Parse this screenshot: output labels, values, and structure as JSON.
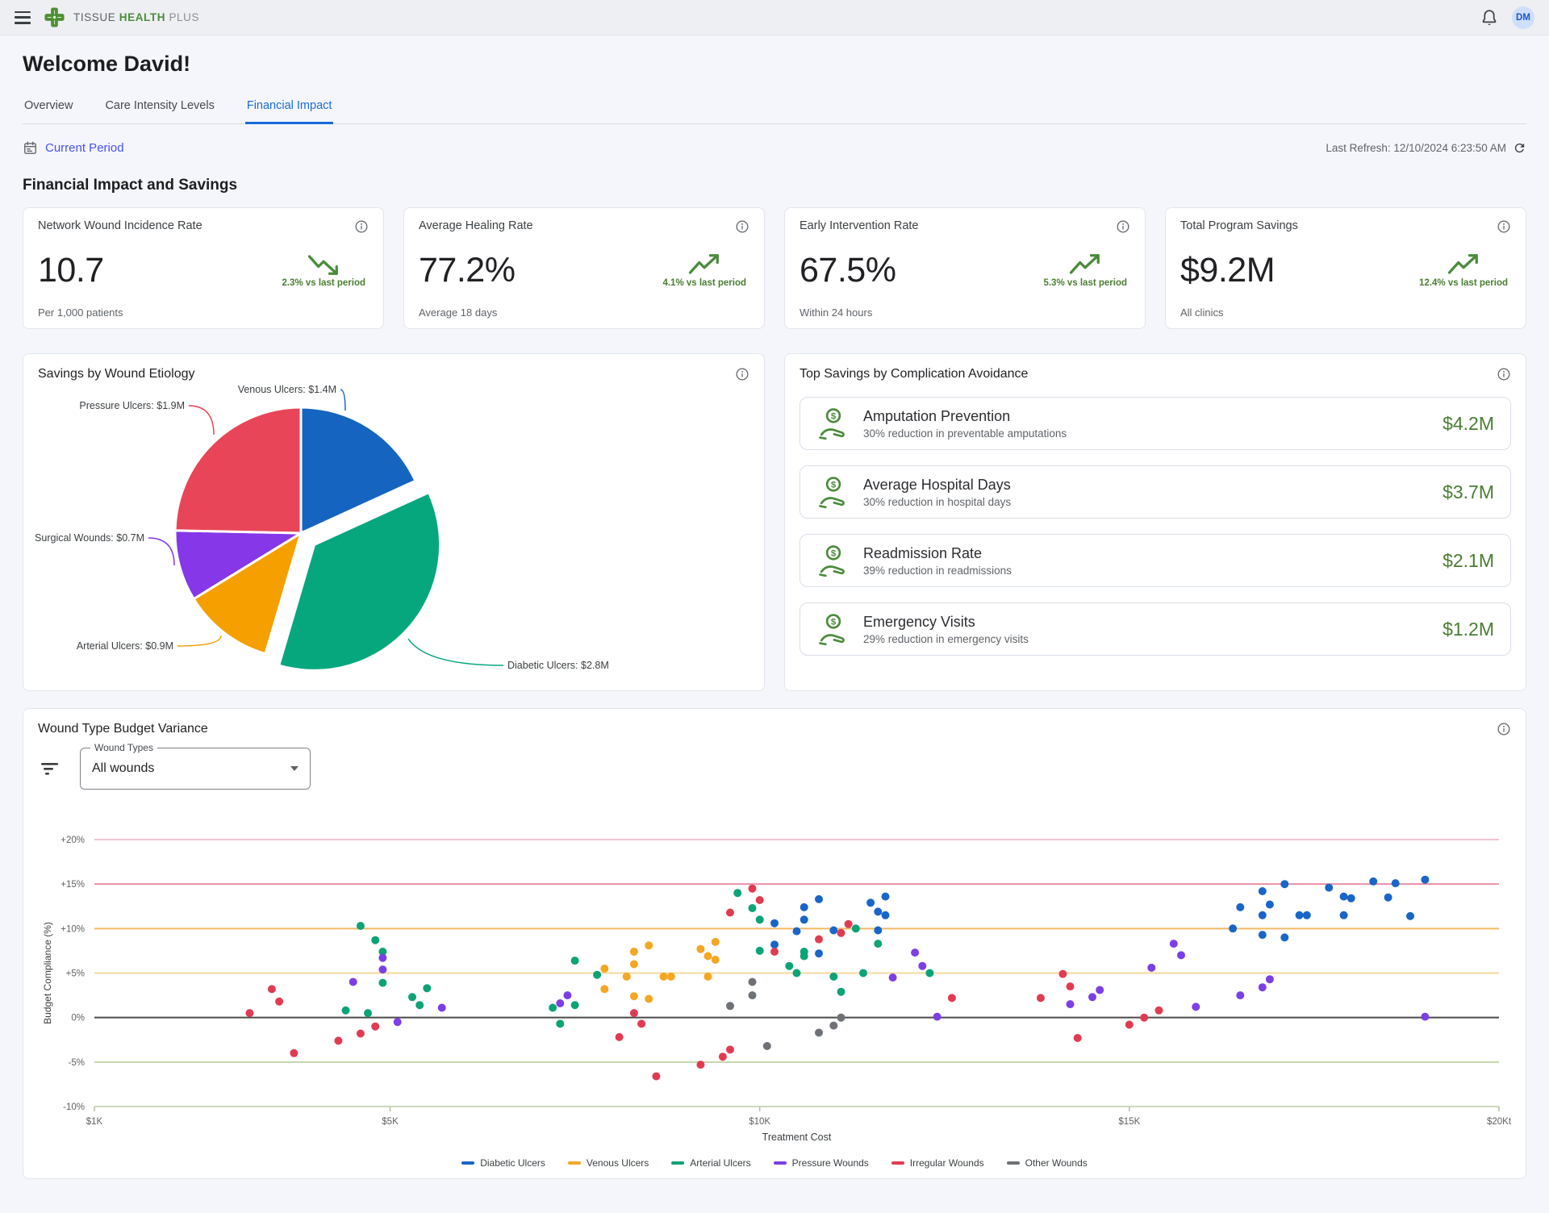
{
  "topbar": {
    "brand": {
      "word1": "TISSUE",
      "word2": "HEALTH",
      "word3": "PLUS"
    },
    "avatar": "DM"
  },
  "page": {
    "welcome": "Welcome David!",
    "tabs": [
      {
        "label": "Overview",
        "active": false
      },
      {
        "label": "Care Intensity Levels",
        "active": false
      },
      {
        "label": "Financial Impact",
        "active": true
      }
    ],
    "period_link": "Current Period",
    "last_refresh": "Last Refresh: 12/10/2024 6:23:50 AM",
    "section_title": "Financial Impact and Savings"
  },
  "kpis": [
    {
      "title": "Network Wound Incidence Rate",
      "value": "10.7",
      "subtitle": "Per 1,000 patients",
      "trend": "down",
      "trend_label": "2.3% vs last period"
    },
    {
      "title": "Average Healing Rate",
      "value": "77.2%",
      "subtitle": "Average 18 days",
      "trend": "up",
      "trend_label": "4.1% vs last period"
    },
    {
      "title": "Early Intervention Rate",
      "value": "67.5%",
      "subtitle": "Within 24 hours",
      "trend": "up",
      "trend_label": "5.3% vs last period"
    },
    {
      "title": "Total Program Savings",
      "value": "$9.2M",
      "subtitle": "All clinics",
      "trend": "up",
      "trend_label": "12.4% vs last period"
    }
  ],
  "savings": {
    "title": "Top Savings by Complication Avoidance",
    "items": [
      {
        "title": "Amputation Prevention",
        "subtitle": "30% reduction in preventable amputations",
        "value": "$4.2M"
      },
      {
        "title": "Average Hospital Days",
        "subtitle": "30% reduction in hospital days",
        "value": "$3.7M"
      },
      {
        "title": "Readmission Rate",
        "subtitle": "39% reduction in readmissions",
        "value": "$2.1M"
      },
      {
        "title": "Emergency Visits",
        "subtitle": "29% reduction in emergency visits",
        "value": "$1.2M"
      }
    ]
  },
  "filter": {
    "label": "Wound Types",
    "value": "All wounds"
  },
  "chart_data": [
    {
      "type": "pie",
      "title": "Savings by Wound Etiology",
      "unit": "$M",
      "slices": [
        {
          "label": "Venous Ulcers",
          "value": 1.4,
          "display": "Venous Ulcers: $1.4M",
          "color": "#1565C0",
          "exploded": false
        },
        {
          "label": "Diabetic Ulcers",
          "value": 2.8,
          "display": "Diabetic Ulcers: $2.8M",
          "color": "#06A77D",
          "exploded": true
        },
        {
          "label": "Arterial Ulcers",
          "value": 0.9,
          "display": "Arterial Ulcers: $0.9M",
          "color": "#F5A000",
          "exploded": false
        },
        {
          "label": "Surgical Wounds",
          "value": 0.7,
          "display": "Surgical Wounds: $0.7M",
          "color": "#8637E8",
          "exploded": false
        },
        {
          "label": "Pressure Ulcers",
          "value": 1.9,
          "display": "Pressure Ulcers: $1.9M",
          "color": "#E84658",
          "exploded": false
        }
      ]
    },
    {
      "type": "scatter",
      "title": "Wound Type Budget Variance",
      "xlabel": "Treatment Cost",
      "ylabel": "Budget Compliance (%)",
      "xlim": [
        1000,
        20000
      ],
      "ylim": [
        -10,
        20
      ],
      "x_ticks": [
        {
          "v": 1000,
          "label": "$1K"
        },
        {
          "v": 5000,
          "label": "$5K"
        },
        {
          "v": 10000,
          "label": "$10K"
        },
        {
          "v": 15000,
          "label": "$15K"
        },
        {
          "v": 20000,
          "label": "$20Kt"
        }
      ],
      "y_ticks": [
        {
          "v": 20,
          "label": "+20%",
          "color": "#F5C2D1"
        },
        {
          "v": 15,
          "label": "+15%",
          "color": "#E98FA5"
        },
        {
          "v": 10,
          "label": "+10%",
          "color": "#F3B964"
        },
        {
          "v": 5,
          "label": "+5%",
          "color": "#F7D89E"
        },
        {
          "v": 0,
          "label": "0%",
          "color": "#4A4A4A"
        },
        {
          "v": -5,
          "label": "-5%",
          "color": "#C3D5AB"
        },
        {
          "v": -10,
          "label": "-10%",
          "color": "#CCDABD"
        }
      ],
      "legend_position": "bottom",
      "series": [
        {
          "name": "Diabetic Ulcers",
          "color": "#1966C8",
          "points": [
            [
              10200,
              10.6
            ],
            [
              10200,
              8.2
            ],
            [
              10600,
              12.4
            ],
            [
              10600,
              11.0
            ],
            [
              10500,
              9.7
            ],
            [
              10800,
              13.3
            ],
            [
              10800,
              7.2
            ],
            [
              11000,
              9.8
            ],
            [
              11500,
              12.9
            ],
            [
              11600,
              11.9
            ],
            [
              11600,
              9.8
            ],
            [
              11700,
              13.6
            ],
            [
              11700,
              11.5
            ],
            [
              16400,
              10.0
            ],
            [
              16500,
              12.4
            ],
            [
              16800,
              11.5
            ],
            [
              16800,
              14.2
            ],
            [
              16900,
              12.7
            ],
            [
              16800,
              9.3
            ],
            [
              17100,
              15.0
            ],
            [
              17100,
              9.0
            ],
            [
              17300,
              11.5
            ],
            [
              17400,
              11.5
            ],
            [
              17700,
              14.6
            ],
            [
              17900,
              13.6
            ],
            [
              17900,
              11.5
            ],
            [
              18000,
              13.4
            ],
            [
              18300,
              15.3
            ],
            [
              18600,
              15.1
            ],
            [
              18800,
              11.4
            ],
            [
              19000,
              15.5
            ],
            [
              18500,
              13.5
            ]
          ]
        },
        {
          "name": "Venous Ulcers",
          "color": "#F5A623",
          "points": [
            [
              8300,
              7.4
            ],
            [
              8500,
              8.1
            ],
            [
              8300,
              6.0
            ],
            [
              7900,
              5.5
            ],
            [
              8200,
              4.6
            ],
            [
              7900,
              3.2
            ],
            [
              8300,
              2.4
            ],
            [
              8500,
              2.1
            ],
            [
              8700,
              4.6
            ],
            [
              8800,
              4.6
            ],
            [
              9200,
              7.7
            ],
            [
              9300,
              6.9
            ],
            [
              9400,
              8.5
            ],
            [
              9400,
              6.5
            ],
            [
              9300,
              4.6
            ]
          ]
        },
        {
          "name": "Arterial Ulcers",
          "color": "#0CA377",
          "points": [
            [
              4600,
              10.3
            ],
            [
              4800,
              8.7
            ],
            [
              4900,
              7.4
            ],
            [
              4900,
              3.9
            ],
            [
              4400,
              0.8
            ],
            [
              4700,
              0.5
            ],
            [
              5300,
              2.3
            ],
            [
              5500,
              3.3
            ],
            [
              5400,
              1.4
            ],
            [
              7500,
              6.4
            ],
            [
              7800,
              4.8
            ],
            [
              7200,
              1.1
            ],
            [
              7500,
              1.4
            ],
            [
              7300,
              -0.7
            ],
            [
              9700,
              14.0
            ],
            [
              9900,
              12.3
            ],
            [
              10000,
              11.0
            ],
            [
              10000,
              7.5
            ],
            [
              10400,
              5.8
            ],
            [
              10500,
              5.0
            ],
            [
              10600,
              7.4
            ],
            [
              10600,
              6.9
            ],
            [
              11000,
              4.6
            ],
            [
              11100,
              2.9
            ],
            [
              11300,
              10.0
            ],
            [
              11400,
              5.0
            ],
            [
              11600,
              8.3
            ],
            [
              12300,
              5.0
            ]
          ]
        },
        {
          "name": "Pressure Wounds",
          "color": "#7C3FE4",
          "points": [
            [
              4900,
              6.7
            ],
            [
              4900,
              5.4
            ],
            [
              4500,
              4.0
            ],
            [
              5100,
              -0.5
            ],
            [
              5700,
              1.1
            ],
            [
              7400,
              2.5
            ],
            [
              7300,
              1.6
            ],
            [
              11800,
              4.5
            ],
            [
              12100,
              7.3
            ],
            [
              12200,
              5.8
            ],
            [
              12400,
              0.1
            ],
            [
              14200,
              1.5
            ],
            [
              14500,
              2.3
            ],
            [
              14600,
              3.1
            ],
            [
              15300,
              5.6
            ],
            [
              15600,
              8.3
            ],
            [
              15700,
              7.0
            ],
            [
              15900,
              1.2
            ],
            [
              16500,
              2.5
            ],
            [
              16800,
              3.4
            ],
            [
              16900,
              4.3
            ],
            [
              19000,
              0.1
            ]
          ]
        },
        {
          "name": "Irregular Wounds",
          "color": "#E13B52",
          "points": [
            [
              3400,
              3.2
            ],
            [
              3500,
              1.8
            ],
            [
              3100,
              0.5
            ],
            [
              4800,
              -1.0
            ],
            [
              4600,
              -1.8
            ],
            [
              4300,
              -2.6
            ],
            [
              3700,
              -4.0
            ],
            [
              8300,
              0.5
            ],
            [
              8400,
              -0.7
            ],
            [
              8100,
              -2.2
            ],
            [
              8600,
              -6.6
            ],
            [
              9200,
              -5.3
            ],
            [
              9500,
              -4.4
            ],
            [
              9600,
              -3.6
            ],
            [
              9600,
              11.8
            ],
            [
              9900,
              14.5
            ],
            [
              10000,
              13.2
            ],
            [
              10200,
              7.4
            ],
            [
              10800,
              8.8
            ],
            [
              11100,
              9.5
            ],
            [
              11200,
              10.5
            ],
            [
              12600,
              2.2
            ],
            [
              13800,
              2.2
            ],
            [
              14100,
              4.9
            ],
            [
              14200,
              3.5
            ],
            [
              14300,
              -2.3
            ],
            [
              15000,
              -0.8
            ],
            [
              15200,
              0.0
            ],
            [
              15400,
              0.8
            ]
          ]
        },
        {
          "name": "Other Wounds",
          "color": "#6E7276",
          "points": [
            [
              9600,
              1.3
            ],
            [
              9900,
              4.0
            ],
            [
              9900,
              2.5
            ],
            [
              10100,
              -3.2
            ],
            [
              10800,
              -1.7
            ],
            [
              11000,
              -0.9
            ],
            [
              11100,
              0.0
            ]
          ]
        }
      ]
    }
  ]
}
